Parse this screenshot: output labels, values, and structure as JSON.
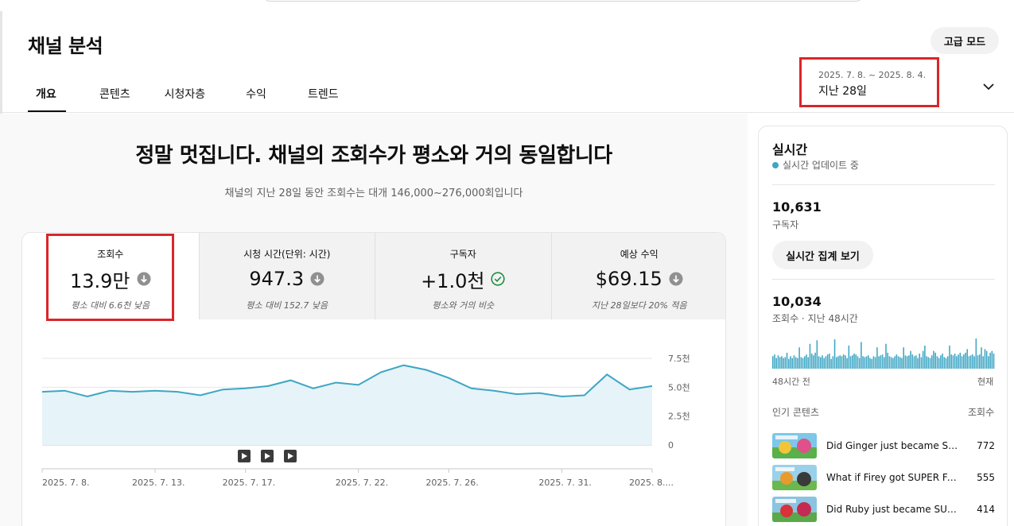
{
  "header": {
    "title": "채널 분석",
    "advanced_mode": "고급 모드",
    "tabs": [
      {
        "label": "개요",
        "active": true
      },
      {
        "label": "콘텐츠",
        "active": false
      },
      {
        "label": "시청자층",
        "active": false
      },
      {
        "label": "수익",
        "active": false
      },
      {
        "label": "트렌드",
        "active": false
      }
    ],
    "date_range": "2025. 7. 8. ~ 2025. 8. 4.",
    "date_label": "지난 28일"
  },
  "summary": {
    "headline": "정말 멋집니다. 채널의 조회수가 평소와 거의 동일합니다",
    "subline": "채널의 지난 28일 동안 조회수는 대개 146,000~276,000회입니다"
  },
  "metrics": [
    {
      "label": "조회수",
      "value": "13.9만",
      "icon": "arrow-down-circle-icon",
      "note": "평소 대비 6.6천 낮음",
      "active": true
    },
    {
      "label": "시청 시간(단위: 시간)",
      "value": "947.3",
      "icon": "arrow-down-circle-icon",
      "note": "평소 대비 152.7 낮음",
      "active": false
    },
    {
      "label": "구독자",
      "value": "+1.0천",
      "icon": "check-circle-icon",
      "note": "평소와 거의 비슷",
      "active": false
    },
    {
      "label": "예상 수익",
      "value": "$69.15",
      "icon": "arrow-down-circle-icon",
      "note": "지난 28일보다 20% 적음",
      "active": false
    }
  ],
  "chart_data": {
    "type": "area",
    "series": [
      {
        "values": [
          4.6,
          4.7,
          4.2,
          4.7,
          4.6,
          4.7,
          4.6,
          4.3,
          4.8,
          4.9,
          5.1,
          5.6,
          4.9,
          5.4,
          5.2,
          6.3,
          6.9,
          6.5,
          5.8,
          4.9,
          4.7,
          4.4,
          4.5,
          4.2,
          4.3,
          6.1,
          4.8,
          5.1
        ]
      }
    ],
    "x_ticks": [
      "2025. 7. 8.",
      "2025. 7. 13.",
      "2025. 7. 17.",
      "2025. 7. 22.",
      "2025. 7. 26.",
      "2025. 7. 31.",
      "2025. 8...."
    ],
    "x_tick_index": [
      0,
      5,
      9,
      14,
      18,
      23,
      27
    ],
    "y_ticks": [
      {
        "value": 7.5,
        "label": "7.5천"
      },
      {
        "value": 5.0,
        "label": "5.0천"
      },
      {
        "value": 2.5,
        "label": "2.5천"
      },
      {
        "value": 0,
        "label": "0"
      }
    ],
    "ylim": [
      0,
      7.5
    ],
    "line_color": "#3ea6c4",
    "fill_color": "#e6f3f8",
    "markers": 3,
    "marker_icon": "play-square-icon"
  },
  "realtime": {
    "title": "실시간",
    "status": "실시간 업데이트 중",
    "subscribers": "10,631",
    "subscribers_label": "구독자",
    "button": "실시간 집계 보기",
    "views": "10,034",
    "views_label": "조회수 · 지난 48시간",
    "bars": [
      14,
      16,
      12,
      15,
      13,
      14,
      12,
      13,
      18,
      11,
      14,
      12,
      15,
      13,
      12,
      24,
      13,
      12,
      14,
      16,
      13,
      28,
      17,
      15,
      18,
      32,
      14,
      13,
      15,
      12,
      14,
      16,
      17,
      11,
      14,
      33,
      13,
      14,
      15,
      14,
      16,
      15,
      12,
      26,
      14,
      15,
      17,
      16,
      14,
      12,
      30,
      14,
      13,
      14,
      15,
      12,
      11,
      14,
      13,
      24,
      14,
      15,
      16,
      13,
      28,
      18,
      14,
      13,
      12,
      14,
      16,
      14,
      13,
      12,
      24,
      15,
      14,
      15,
      20,
      16,
      14,
      15,
      12,
      17,
      13,
      20,
      26,
      14,
      13,
      12,
      15,
      20,
      18,
      14,
      12,
      15,
      17,
      13,
      12,
      14,
      26,
      16,
      15,
      17,
      14,
      16,
      18,
      14,
      16,
      18,
      22,
      14,
      15,
      16,
      14,
      34,
      15,
      16,
      24,
      14,
      22,
      20,
      14,
      18,
      20,
      17
    ],
    "bar_color": "#3ea6c4",
    "axis_left": "48시간 전",
    "axis_right": "현재",
    "top_heading": "인기 콘텐츠",
    "top_heading_right": "조회수",
    "top_content": [
      {
        "title": "Did Ginger just became SUPER...",
        "views": "772"
      },
      {
        "title": "What if Firey got SUPER FA...",
        "views": "555"
      },
      {
        "title": "Did Ruby just became SUPER...",
        "views": "414"
      }
    ]
  }
}
